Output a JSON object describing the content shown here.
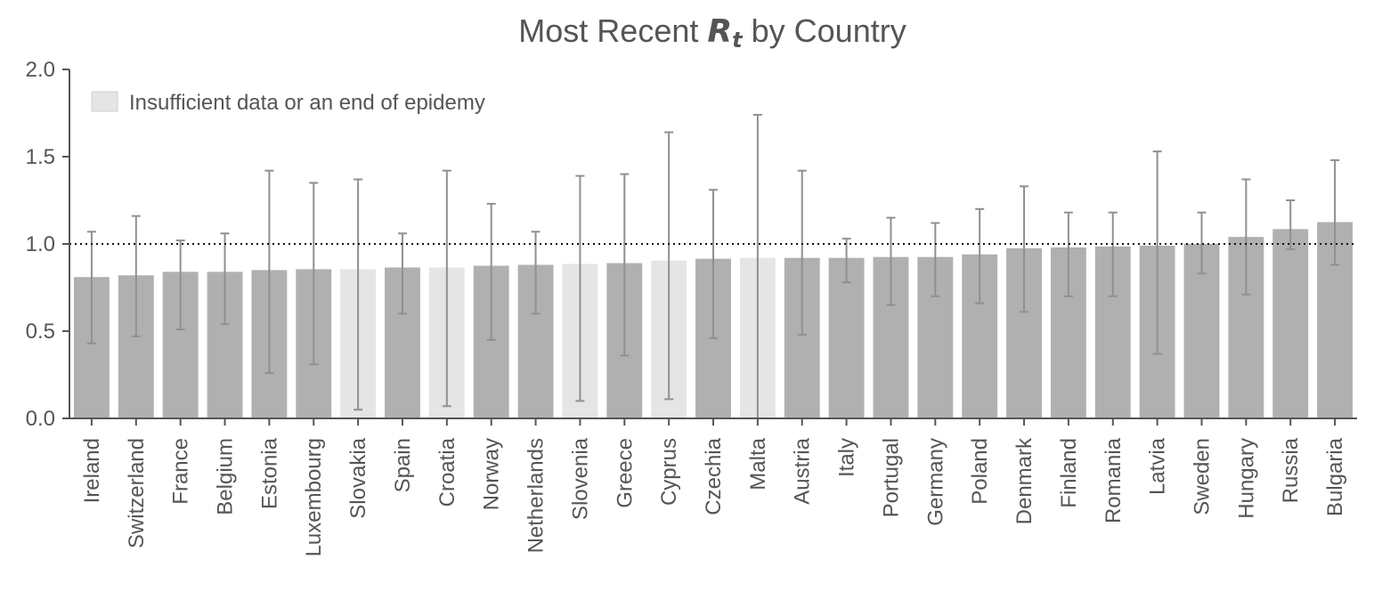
{
  "chart_data": {
    "type": "bar",
    "title_prefix": "Most Recent",
    "title_symbol": "R",
    "title_subscript": "t",
    "title_suffix": "by Country",
    "xlabel": "",
    "ylabel": "",
    "ylim": [
      0,
      2.0
    ],
    "yticks": [
      "0.0",
      "0.5",
      "1.0",
      "1.5",
      "2.0"
    ],
    "reference_line": 1.0,
    "grid": false,
    "legend": {
      "label": "Insufficient data or an end of epidemy",
      "placement": "top-left"
    },
    "colors": {
      "sufficient": "#b0b0b0",
      "insufficient": "#e5e5e5",
      "error_bar": "#909090",
      "axis": "#555555"
    },
    "categories": [
      "Ireland",
      "Switzerland",
      "France",
      "Belgium",
      "Estonia",
      "Luxembourg",
      "Slovakia",
      "Spain",
      "Croatia",
      "Norway",
      "Netherlands",
      "Slovenia",
      "Greece",
      "Cyprus",
      "Czechia",
      "Malta",
      "Austria",
      "Italy",
      "Portugal",
      "Germany",
      "Poland",
      "Denmark",
      "Finland",
      "Romania",
      "Latvia",
      "Sweden",
      "Hungary",
      "Russia",
      "Bulgaria"
    ],
    "values": [
      0.81,
      0.82,
      0.84,
      0.84,
      0.85,
      0.855,
      0.855,
      0.865,
      0.865,
      0.875,
      0.88,
      0.885,
      0.89,
      0.905,
      0.915,
      0.92,
      0.92,
      0.92,
      0.925,
      0.925,
      0.94,
      0.975,
      0.98,
      0.985,
      0.99,
      1.0,
      1.04,
      1.085,
      1.125
    ],
    "error_low": [
      0.43,
      0.47,
      0.51,
      0.54,
      0.26,
      0.31,
      0.05,
      0.6,
      0.07,
      0.45,
      0.6,
      0.1,
      0.36,
      0.11,
      0.46,
      0.0,
      0.48,
      0.78,
      0.65,
      0.7,
      0.66,
      0.61,
      0.7,
      0.7,
      0.37,
      0.83,
      0.71,
      0.97,
      0.88
    ],
    "error_high": [
      1.07,
      1.16,
      1.02,
      1.06,
      1.42,
      1.35,
      1.37,
      1.06,
      1.42,
      1.23,
      1.07,
      1.39,
      1.4,
      1.64,
      1.31,
      1.74,
      1.42,
      1.03,
      1.15,
      1.12,
      1.2,
      1.33,
      1.18,
      1.18,
      1.53,
      1.18,
      1.37,
      1.25,
      1.48
    ],
    "insufficient": [
      false,
      false,
      false,
      false,
      false,
      false,
      true,
      false,
      true,
      false,
      false,
      true,
      false,
      true,
      false,
      true,
      false,
      false,
      false,
      false,
      false,
      false,
      false,
      false,
      false,
      false,
      false,
      false,
      false
    ]
  }
}
